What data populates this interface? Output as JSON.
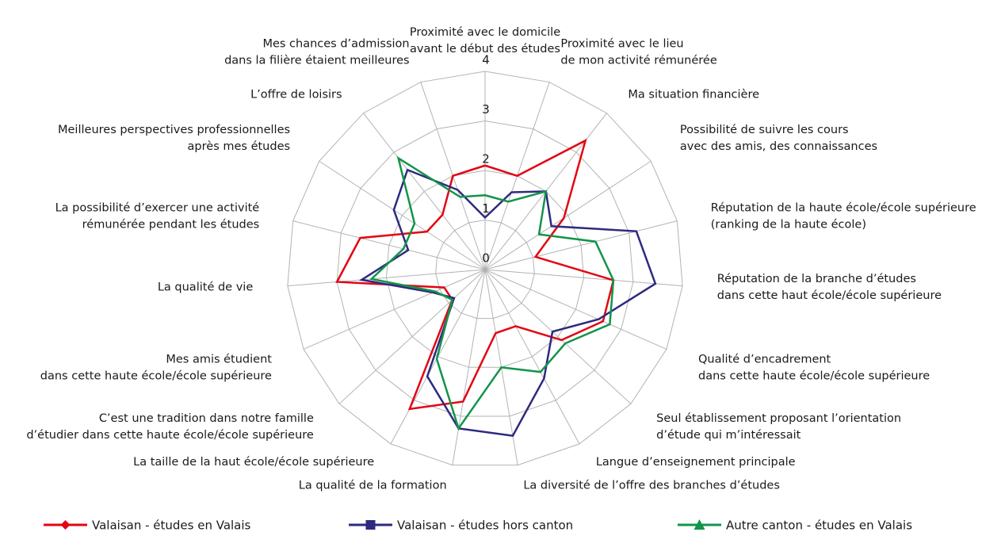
{
  "chart_data": {
    "type": "radar",
    "categories": [
      [
        "Proximité avec le domicile",
        "avant le début des études"
      ],
      [
        "Proximité avec le lieu",
        "de mon activité rémunérée"
      ],
      [
        "Ma situation financière"
      ],
      [
        "Possibilité de suivre les cours",
        "avec des amis, des connaissances"
      ],
      [
        "Réputation de la haute école/école supérieure",
        "(ranking de la haute école)"
      ],
      [
        "Réputation de la branche d’études",
        "dans cette haut école/école supérieure"
      ],
      [
        "Qualité d’encadrement",
        "dans cette haute école/école supérieure"
      ],
      [
        "Seul établissement proposant l’orientation",
        "d’étude qui m’intéressait"
      ],
      [
        "Langue d’enseignement principale"
      ],
      [
        "La diversité de l’offre des branches d’études"
      ],
      [
        "La qualité de la formation"
      ],
      [
        "La taille de la haut école/école supérieure"
      ],
      [
        "C’est une tradition dans notre famille",
        "d’étudier dans cette haute école/école supérieure"
      ],
      [
        "Mes amis étudient",
        "dans cette haute école/école supérieure"
      ],
      [
        "La qualité de vie"
      ],
      [
        "La possibilité d’exercer une activité",
        "rémunérée pendant les études"
      ],
      [
        "Meilleures perspectives professionnelles",
        "après mes études"
      ],
      [
        "L’offre de loisirs"
      ],
      [
        "Mes chances d’admission",
        "dans la filière étaient meilleures"
      ]
    ],
    "series": [
      {
        "name": "Valaisan - études en Valais",
        "color": "#e30613",
        "marker": "diamond",
        "values": [
          2.1,
          2.0,
          3.3,
          1.9,
          1.05,
          2.6,
          2.6,
          2.1,
          1.3,
          1.3,
          2.7,
          3.2,
          0.9,
          0.9,
          3.0,
          2.6,
          1.4,
          1.4,
          2.0
        ]
      },
      {
        "name": "Valaisan - études hors canton",
        "color": "#2e2a7f",
        "marker": "square",
        "values": [
          1.05,
          1.65,
          2.0,
          1.6,
          3.15,
          3.45,
          2.5,
          1.85,
          2.5,
          3.4,
          3.25,
          2.45,
          0.85,
          1.15,
          2.5,
          1.6,
          2.2,
          2.55,
          1.7
        ]
      },
      {
        "name": "Autre canton - études en Valais",
        "color": "#12944a",
        "marker": "triangle",
        "values": [
          1.5,
          1.45,
          2.0,
          1.3,
          2.3,
          2.6,
          2.75,
          2.2,
          2.35,
          2.0,
          3.25,
          2.05,
          0.9,
          1.1,
          2.3,
          1.7,
          1.7,
          2.85,
          1.55
        ]
      }
    ],
    "rlim": [
      0,
      4
    ],
    "rticks": [
      0,
      1,
      2,
      3,
      4
    ],
    "grid": true
  }
}
